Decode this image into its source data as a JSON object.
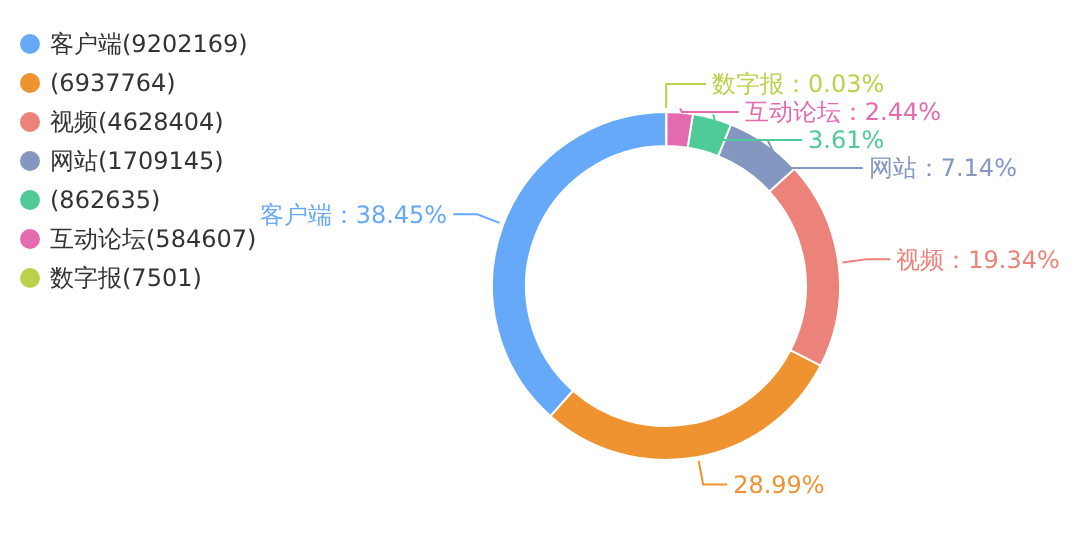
{
  "chart_data": {
    "type": "donut",
    "categories": [
      "客户端",
      null,
      "视频",
      "网站",
      null,
      "互动论坛",
      "数字报"
    ],
    "values": [
      38.45,
      28.99,
      19.34,
      7.14,
      3.61,
      2.44,
      0.03
    ],
    "value_labels": [
      "：38.45%",
      "28.99%",
      "：19.34%",
      "：7.14%",
      "3.61%",
      "：2.44%",
      "：0.03%"
    ],
    "annotations": [
      "(9202169)",
      "(6937764)",
      "(4628404)",
      "(1709145)",
      "(862635)",
      "(584607)",
      "(7501)"
    ],
    "colors": [
      "#65a9f8",
      "#ef9230",
      "#ec837b",
      "#8497c0",
      "#4ecb99",
      "#e46bb0",
      "#b9d24a"
    ],
    "legend": "top left"
  }
}
